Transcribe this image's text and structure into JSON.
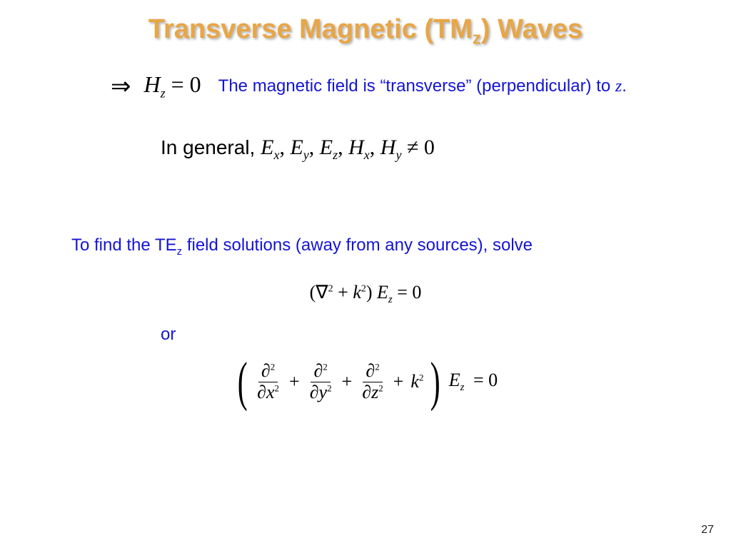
{
  "colors": {
    "title": "#e8a646",
    "title_shadow": "rgba(100,100,100,0.5)",
    "body_text": "#000000",
    "accent_blue": "#1414d6",
    "background": "#ffffff"
  },
  "fonts": {
    "heading_family": "Arial, Helvetica, sans-serif",
    "heading_size_pt": 38,
    "math_family": "Times New Roman, serif",
    "body_size_pt": 24
  },
  "title": {
    "pre": "Transverse Magnetic (TM",
    "sub": "z",
    "post": ") Waves"
  },
  "row1": {
    "arrow": "⇒",
    "Hvar": "H",
    "Hsub": "z",
    "eqzero": " = 0",
    "caption_pre": "The magnetic field is “transverse” (perpendicular) to ",
    "caption_var": "z",
    "caption_post": "."
  },
  "row2": {
    "lead": "In general, ",
    "terms": "E_x, E_y, E_z, H_x, H_y",
    "E": "E",
    "H": "H",
    "sub_x": "x",
    "sub_y": "y",
    "sub_z": "z",
    "comma": ", ",
    "neq": " ≠ 0"
  },
  "blue2": {
    "pre": "To find the TE",
    "sub": "z",
    "post": " field solutions (away from any sources), solve"
  },
  "helm1": {
    "open": "(",
    "nabla": "∇",
    "sup2": "2",
    "plus": " + ",
    "k": "k",
    "close": ") ",
    "E": "E",
    "Esub": "z",
    "eq": " = 0"
  },
  "orword": "or",
  "helm2": {
    "partial": "∂",
    "sup2": "2",
    "x": "x",
    "y": "y",
    "z": "z",
    "plus": "+",
    "k": "k",
    "E": "E",
    "Esub": "z",
    "eq": "= 0"
  },
  "page_number": "27"
}
